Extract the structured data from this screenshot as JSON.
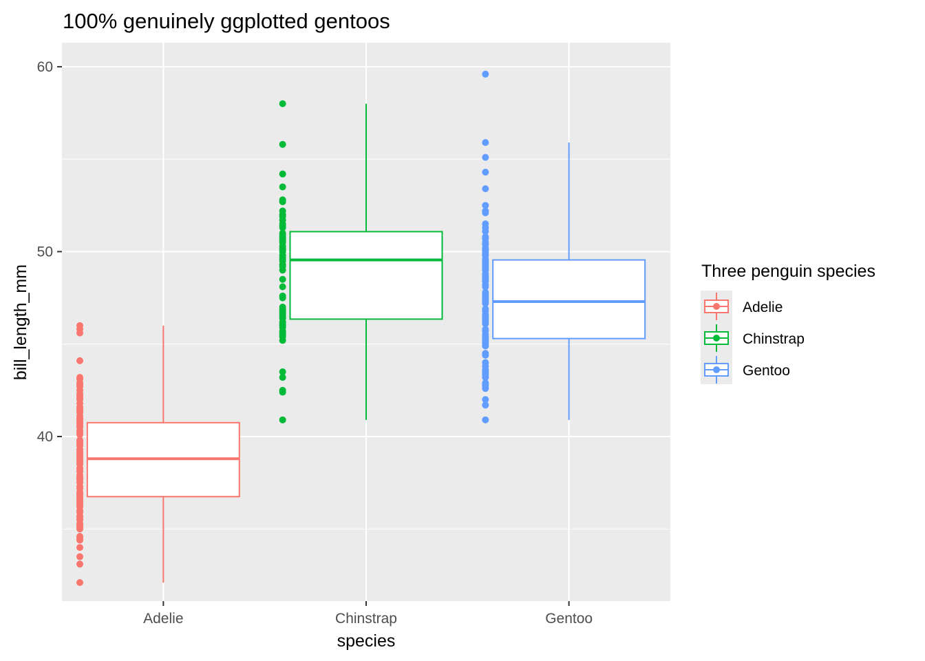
{
  "chart_data": {
    "type": "box",
    "title": "100% genuinely ggplotted gentoos",
    "xlabel": "species",
    "ylabel": "bill_length_mm",
    "categories": [
      "Adelie",
      "Chinstrap",
      "Gentoo"
    ],
    "ylim": [
      31.1,
      61.3
    ],
    "yticks": [
      40,
      50,
      60
    ],
    "grid": true,
    "legend": {
      "title": "Three penguin species",
      "position": "right",
      "entries": [
        "Adelie",
        "Chinstrap",
        "Gentoo"
      ]
    },
    "series": [
      {
        "name": "Adelie",
        "color": "#F8766D",
        "whisker_low": 32.1,
        "q1": 36.75,
        "median": 38.8,
        "q3": 40.75,
        "whisker_high": 46.0,
        "points": [
          32.1,
          33.1,
          33.5,
          34.0,
          34.4,
          34.5,
          34.6,
          35.0,
          35.1,
          35.2,
          35.3,
          35.5,
          35.6,
          35.7,
          35.9,
          36.0,
          36.2,
          36.3,
          36.4,
          36.5,
          36.6,
          36.7,
          36.8,
          36.9,
          37.0,
          37.2,
          37.3,
          37.5,
          37.6,
          37.7,
          37.8,
          37.9,
          38.1,
          38.2,
          38.3,
          38.5,
          38.6,
          38.7,
          38.8,
          38.9,
          39.0,
          39.1,
          39.2,
          39.3,
          39.5,
          39.6,
          39.7,
          39.8,
          40.1,
          40.2,
          40.3,
          40.5,
          40.6,
          40.7,
          40.8,
          40.9,
          41.0,
          41.1,
          41.3,
          41.4,
          41.5,
          41.6,
          41.8,
          42.0,
          42.1,
          42.2,
          42.3,
          42.5,
          42.7,
          42.8,
          42.9,
          43.1,
          43.2,
          44.1,
          45.6,
          45.8,
          46.0
        ]
      },
      {
        "name": "Chinstrap",
        "color": "#00BA38",
        "whisker_low": 40.9,
        "q1": 46.35,
        "median": 49.55,
        "q3": 51.08,
        "whisker_high": 58.0,
        "points": [
          40.9,
          42.4,
          42.5,
          43.2,
          43.5,
          45.2,
          45.4,
          45.5,
          45.6,
          45.7,
          45.9,
          46.0,
          46.1,
          46.2,
          46.4,
          46.5,
          46.6,
          46.7,
          46.8,
          46.9,
          47.0,
          47.5,
          47.6,
          48.1,
          48.5,
          49.0,
          49.2,
          49.3,
          49.5,
          49.6,
          49.7,
          49.8,
          50.0,
          50.1,
          50.2,
          50.3,
          50.5,
          50.6,
          50.7,
          50.8,
          50.9,
          51.0,
          51.3,
          51.4,
          51.5,
          51.7,
          51.9,
          52.0,
          52.2,
          52.7,
          52.8,
          53.5,
          54.2,
          55.8,
          58.0
        ]
      },
      {
        "name": "Gentoo",
        "color": "#619CFF",
        "whisker_low": 40.9,
        "q1": 45.3,
        "median": 47.3,
        "q3": 49.55,
        "whisker_high": 55.9,
        "points": [
          40.9,
          41.7,
          42.0,
          42.6,
          42.7,
          42.8,
          42.9,
          43.2,
          43.3,
          43.4,
          43.5,
          43.6,
          43.8,
          44.0,
          44.4,
          44.5,
          44.9,
          45.0,
          45.1,
          45.2,
          45.3,
          45.4,
          45.5,
          45.7,
          45.8,
          46.1,
          46.2,
          46.3,
          46.4,
          46.5,
          46.6,
          46.8,
          46.9,
          47.2,
          47.3,
          47.4,
          47.5,
          47.6,
          47.7,
          47.8,
          48.1,
          48.2,
          48.4,
          48.5,
          48.6,
          48.7,
          48.8,
          49.0,
          49.1,
          49.2,
          49.3,
          49.4,
          49.5,
          49.6,
          49.8,
          49.9,
          50.0,
          50.1,
          50.2,
          50.4,
          50.5,
          50.7,
          50.8,
          51.1,
          51.3,
          51.5,
          52.1,
          52.2,
          52.5,
          53.4,
          54.3,
          55.1,
          55.9,
          59.6
        ]
      }
    ]
  }
}
